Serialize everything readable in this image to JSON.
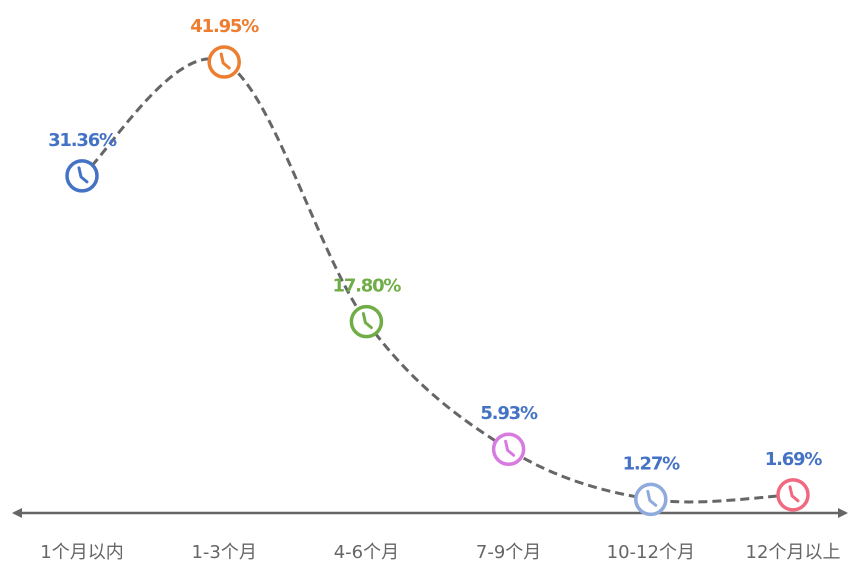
{
  "chart_data": {
    "type": "line",
    "categories": [
      "1个月以内",
      "1-3个月",
      "4-6个月",
      "7-9个月",
      "10-12个月",
      "12个月以上"
    ],
    "values": [
      31.36,
      41.95,
      17.8,
      5.93,
      1.27,
      1.69
    ],
    "value_labels": [
      "31.36%",
      "41.95%",
      "17.80%",
      "5.93%",
      "1.27%",
      "1.69%"
    ],
    "marker_colors": [
      "#4472c4",
      "#ed7d31",
      "#70ad47",
      "#d77be0",
      "#8faadc",
      "#f0697e"
    ],
    "label_colors": [
      "#4472c4",
      "#ed7d31",
      "#70ad47",
      "#4472c4",
      "#4472c4",
      "#4472c4"
    ],
    "line_color": "#666666"
  }
}
